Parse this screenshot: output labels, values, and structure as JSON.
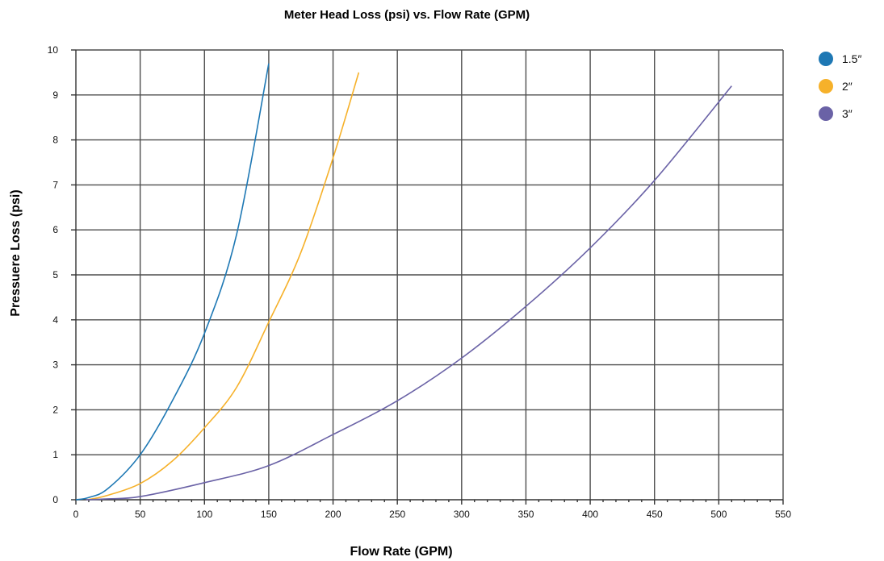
{
  "chart_data": {
    "type": "line",
    "title": "Meter Head Loss (psi) vs. Flow Rate (GPM)",
    "xlabel": "Flow Rate (GPM)",
    "ylabel": "Pressuere Loss (psi)",
    "xlim": [
      0,
      550
    ],
    "ylim": [
      0,
      10
    ],
    "x_ticks": [
      0,
      50,
      100,
      150,
      200,
      250,
      300,
      350,
      400,
      450,
      500,
      550
    ],
    "y_ticks": [
      0,
      1,
      2,
      3,
      4,
      5,
      6,
      7,
      8,
      9,
      10
    ],
    "grid": true,
    "legend_position": "top-right",
    "series": [
      {
        "name": "1.5″",
        "color": "#1e78b4",
        "x": [
          0,
          10,
          25,
          50,
          75,
          100,
          125,
          150
        ],
        "y": [
          0.0,
          0.05,
          0.25,
          1.0,
          2.2,
          3.7,
          5.9,
          9.7
        ]
      },
      {
        "name": "2″",
        "color": "#f6b12a",
        "x": [
          9,
          25,
          50,
          75,
          100,
          125,
          150,
          175,
          200,
          220
        ],
        "y": [
          0.0,
          0.1,
          0.36,
          0.86,
          1.6,
          2.5,
          3.95,
          5.5,
          7.6,
          9.5
        ]
      },
      {
        "name": "3″",
        "color": "#6a62a6",
        "x": [
          8,
          25,
          50,
          100,
          150,
          200,
          250,
          300,
          350,
          400,
          450,
          510
        ],
        "y": [
          0.0,
          0.02,
          0.07,
          0.38,
          0.76,
          1.45,
          2.2,
          3.15,
          4.3,
          5.6,
          7.1,
          9.2
        ]
      }
    ]
  }
}
